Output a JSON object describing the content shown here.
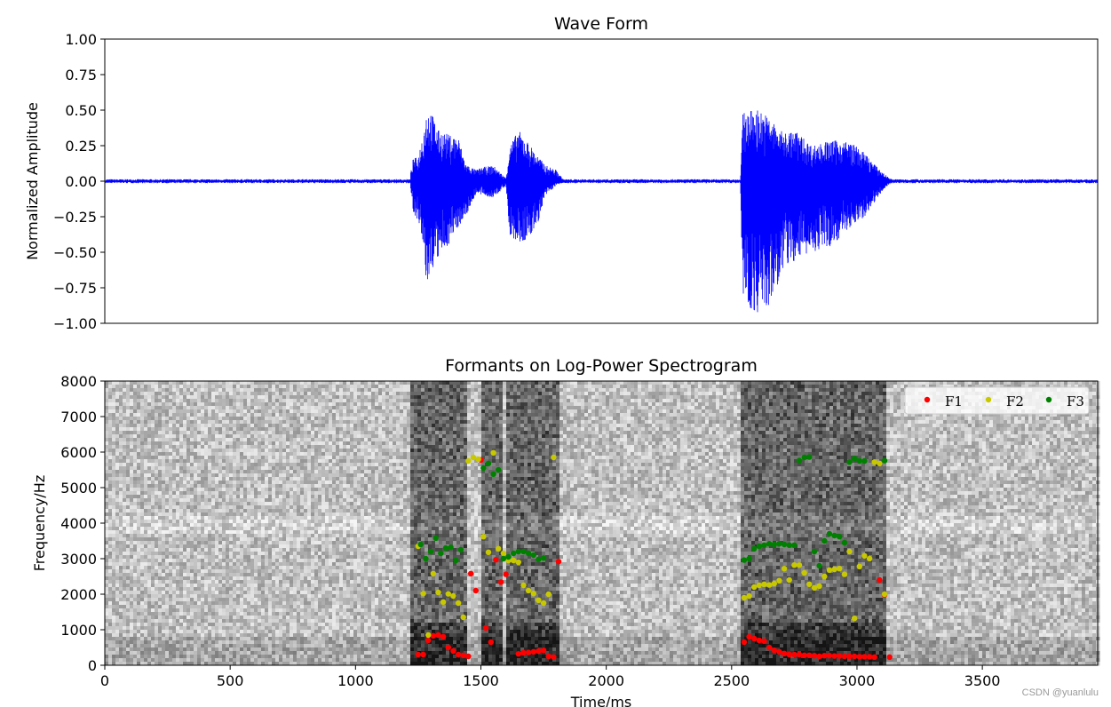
{
  "chart_data": [
    {
      "type": "line",
      "title": "Wave Form",
      "xlabel": "",
      "ylabel": "Normalized Amplitude",
      "xlim": [
        0,
        3960
      ],
      "ylim": [
        -1.0,
        1.0
      ],
      "yticks": [
        1.0,
        0.75,
        0.5,
        0.25,
        0.0,
        -0.25,
        -0.5,
        -0.75,
        -1.0
      ],
      "ytick_labels": [
        "1.00",
        "0.75",
        "0.50",
        "0.25",
        "0.00",
        "−0.25",
        "−0.50",
        "−0.75",
        "−1.00"
      ],
      "xticks_visible": false,
      "color": "#0000ff",
      "noise_floor": 0.01,
      "envelope": [
        {
          "t": 1220,
          "top": 0.06,
          "bottom": -0.05
        },
        {
          "t": 1230,
          "top": 0.16,
          "bottom": -0.22
        },
        {
          "t": 1250,
          "top": 0.17,
          "bottom": -0.28
        },
        {
          "t": 1270,
          "top": 0.35,
          "bottom": -0.5
        },
        {
          "t": 1285,
          "top": 0.51,
          "bottom": -0.76
        },
        {
          "t": 1300,
          "top": 0.5,
          "bottom": -0.64
        },
        {
          "t": 1330,
          "top": 0.36,
          "bottom": -0.55
        },
        {
          "t": 1370,
          "top": 0.33,
          "bottom": -0.45
        },
        {
          "t": 1410,
          "top": 0.31,
          "bottom": -0.32
        },
        {
          "t": 1440,
          "top": 0.12,
          "bottom": -0.25
        },
        {
          "t": 1480,
          "top": 0.08,
          "bottom": -0.09
        },
        {
          "t": 1510,
          "top": 0.1,
          "bottom": -0.1
        },
        {
          "t": 1550,
          "top": 0.11,
          "bottom": -0.12
        },
        {
          "t": 1600,
          "top": 0.02,
          "bottom": -0.03
        },
        {
          "t": 1615,
          "top": 0.25,
          "bottom": -0.4
        },
        {
          "t": 1650,
          "top": 0.36,
          "bottom": -0.44
        },
        {
          "t": 1690,
          "top": 0.27,
          "bottom": -0.42
        },
        {
          "t": 1730,
          "top": 0.17,
          "bottom": -0.28
        },
        {
          "t": 1760,
          "top": 0.11,
          "bottom": -0.1
        },
        {
          "t": 1800,
          "top": 0.08,
          "bottom": -0.03
        },
        {
          "t": 1830,
          "top": 0.01,
          "bottom": -0.01
        },
        {
          "t": 2535,
          "top": 0.0,
          "bottom": 0.0
        },
        {
          "t": 2545,
          "top": 0.48,
          "bottom": -0.86
        },
        {
          "t": 2575,
          "top": 0.5,
          "bottom": -0.91
        },
        {
          "t": 2605,
          "top": 0.51,
          "bottom": -0.93
        },
        {
          "t": 2650,
          "top": 0.45,
          "bottom": -0.9
        },
        {
          "t": 2700,
          "top": 0.35,
          "bottom": -0.65
        },
        {
          "t": 2760,
          "top": 0.35,
          "bottom": -0.55
        },
        {
          "t": 2820,
          "top": 0.25,
          "bottom": -0.5
        },
        {
          "t": 2880,
          "top": 0.28,
          "bottom": -0.48
        },
        {
          "t": 2930,
          "top": 0.29,
          "bottom": -0.4
        },
        {
          "t": 2980,
          "top": 0.27,
          "bottom": -0.32
        },
        {
          "t": 3030,
          "top": 0.2,
          "bottom": -0.25
        },
        {
          "t": 3080,
          "top": 0.1,
          "bottom": -0.12
        },
        {
          "t": 3110,
          "top": 0.05,
          "bottom": -0.05
        },
        {
          "t": 3140,
          "top": 0.01,
          "bottom": -0.01
        }
      ]
    },
    {
      "type": "scatter",
      "title": "Formants on Log-Power Spectrogram",
      "xlabel": "Time/ms",
      "ylabel": "Frequency/Hz",
      "xlim": [
        0,
        3960
      ],
      "ylim": [
        0,
        8000
      ],
      "xticks": [
        0,
        500,
        1000,
        1500,
        2000,
        2500,
        3000,
        3500
      ],
      "xtick_labels": [
        "0",
        "500",
        "1000",
        "1500",
        "2000",
        "2500",
        "3000",
        "3500"
      ],
      "yticks": [
        0,
        1000,
        2000,
        3000,
        4000,
        5000,
        6000,
        7000,
        8000
      ],
      "ytick_labels": [
        "0",
        "1000",
        "2000",
        "3000",
        "4000",
        "5000",
        "6000",
        "7000",
        "8000"
      ],
      "background": "grayscale log-power spectrogram",
      "legend_position": "top-right",
      "legend_columns": 3,
      "spectrogram_voiced_regions": [
        [
          1220,
          1450
        ],
        [
          1500,
          1590
        ],
        [
          1600,
          1820
        ],
        [
          2540,
          3110
        ]
      ],
      "series": [
        {
          "name": "F1",
          "color": "#ff0000",
          "points": [
            [
              1250,
              300
            ],
            [
              1270,
              300
            ],
            [
              1290,
              700
            ],
            [
              1310,
              830
            ],
            [
              1330,
              850
            ],
            [
              1350,
              800
            ],
            [
              1370,
              500
            ],
            [
              1390,
              400
            ],
            [
              1410,
              300
            ],
            [
              1430,
              280
            ],
            [
              1450,
              250
            ],
            [
              1460,
              2580
            ],
            [
              1480,
              2100
            ],
            [
              1500,
              5780
            ],
            [
              1520,
              1050
            ],
            [
              1540,
              650
            ],
            [
              1560,
              2970
            ],
            [
              1580,
              2340
            ],
            [
              1600,
              2560
            ],
            [
              1650,
              320
            ],
            [
              1670,
              350
            ],
            [
              1690,
              360
            ],
            [
              1710,
              380
            ],
            [
              1730,
              400
            ],
            [
              1750,
              420
            ],
            [
              1770,
              250
            ],
            [
              1790,
              230
            ],
            [
              1810,
              2920
            ],
            [
              2550,
              650
            ],
            [
              2570,
              800
            ],
            [
              2590,
              750
            ],
            [
              2610,
              700
            ],
            [
              2630,
              680
            ],
            [
              2650,
              500
            ],
            [
              2670,
              420
            ],
            [
              2690,
              380
            ],
            [
              2710,
              330
            ],
            [
              2730,
              300
            ],
            [
              2750,
              300
            ],
            [
              2770,
              300
            ],
            [
              2790,
              280
            ],
            [
              2810,
              280
            ],
            [
              2830,
              270
            ],
            [
              2850,
              250
            ],
            [
              2870,
              270
            ],
            [
              2890,
              270
            ],
            [
              2910,
              260
            ],
            [
              2930,
              260
            ],
            [
              2950,
              250
            ],
            [
              2970,
              250
            ],
            [
              2990,
              250
            ],
            [
              3010,
              240
            ],
            [
              3030,
              240
            ],
            [
              3050,
              240
            ],
            [
              3070,
              230
            ],
            [
              3090,
              2400
            ],
            [
              3110,
              1980
            ],
            [
              3130,
              230
            ]
          ]
        },
        {
          "name": "F2",
          "color": "#c8c800",
          "points": [
            [
              1250,
              3350
            ],
            [
              1270,
              2020
            ],
            [
              1290,
              850
            ],
            [
              1310,
              2580
            ],
            [
              1330,
              2050
            ],
            [
              1350,
              1780
            ],
            [
              1370,
              2010
            ],
            [
              1390,
              1950
            ],
            [
              1410,
              1750
            ],
            [
              1430,
              1350
            ],
            [
              1450,
              5750
            ],
            [
              1470,
              5850
            ],
            [
              1490,
              5800
            ],
            [
              1510,
              3620
            ],
            [
              1530,
              3180
            ],
            [
              1550,
              5980
            ],
            [
              1570,
              3280
            ],
            [
              1590,
              3150
            ],
            [
              1610,
              2950
            ],
            [
              1630,
              2950
            ],
            [
              1650,
              2900
            ],
            [
              1670,
              2250
            ],
            [
              1690,
              2100
            ],
            [
              1710,
              2020
            ],
            [
              1730,
              1830
            ],
            [
              1750,
              1750
            ],
            [
              1770,
              2000
            ],
            [
              1790,
              5850
            ],
            [
              2550,
              1900
            ],
            [
              2570,
              1950
            ],
            [
              2590,
              2200
            ],
            [
              2610,
              2250
            ],
            [
              2630,
              2280
            ],
            [
              2650,
              2260
            ],
            [
              2670,
              2300
            ],
            [
              2690,
              2380
            ],
            [
              2710,
              2720
            ],
            [
              2730,
              2400
            ],
            [
              2750,
              2820
            ],
            [
              2770,
              2820
            ],
            [
              2790,
              2600
            ],
            [
              2810,
              2280
            ],
            [
              2830,
              2180
            ],
            [
              2850,
              2230
            ],
            [
              2870,
              2500
            ],
            [
              2890,
              2680
            ],
            [
              2910,
              2700
            ],
            [
              2930,
              2720
            ],
            [
              2950,
              2560
            ],
            [
              2970,
              3200
            ],
            [
              2990,
              1320
            ],
            [
              3010,
              2780
            ],
            [
              3030,
              3080
            ],
            [
              3050,
              3000
            ],
            [
              3070,
              5720
            ],
            [
              3090,
              5680
            ],
            [
              3110,
              2000
            ]
          ]
        },
        {
          "name": "F3",
          "color": "#008000",
          "points": [
            [
              1260,
              3400
            ],
            [
              1280,
              3000
            ],
            [
              1300,
              3200
            ],
            [
              1320,
              3580
            ],
            [
              1340,
              3150
            ],
            [
              1360,
              3300
            ],
            [
              1380,
              3320
            ],
            [
              1400,
              2950
            ],
            [
              1420,
              3250
            ],
            [
              1510,
              5550
            ],
            [
              1530,
              5680
            ],
            [
              1550,
              5380
            ],
            [
              1570,
              5500
            ],
            [
              1590,
              3000
            ],
            [
              1610,
              3050
            ],
            [
              1630,
              3150
            ],
            [
              1650,
              3200
            ],
            [
              1670,
              3200
            ],
            [
              1690,
              3150
            ],
            [
              1710,
              3100
            ],
            [
              1730,
              2980
            ],
            [
              1750,
              3020
            ],
            [
              2550,
              2960
            ],
            [
              2570,
              3000
            ],
            [
              2590,
              3280
            ],
            [
              2610,
              3350
            ],
            [
              2630,
              3380
            ],
            [
              2650,
              3420
            ],
            [
              2670,
              3400
            ],
            [
              2690,
              3420
            ],
            [
              2710,
              3400
            ],
            [
              2730,
              3380
            ],
            [
              2750,
              3380
            ],
            [
              2770,
              5760
            ],
            [
              2790,
              5850
            ],
            [
              2810,
              5860
            ],
            [
              2830,
              3200
            ],
            [
              2850,
              2800
            ],
            [
              2870,
              3500
            ],
            [
              2890,
              3700
            ],
            [
              2910,
              3650
            ],
            [
              2930,
              3620
            ],
            [
              2950,
              3450
            ],
            [
              2970,
              5720
            ],
            [
              2990,
              5820
            ],
            [
              3010,
              5750
            ],
            [
              3030,
              5750
            ],
            [
              3110,
              5760
            ]
          ]
        }
      ]
    }
  ],
  "watermark": "CSDN @yuanlulu"
}
